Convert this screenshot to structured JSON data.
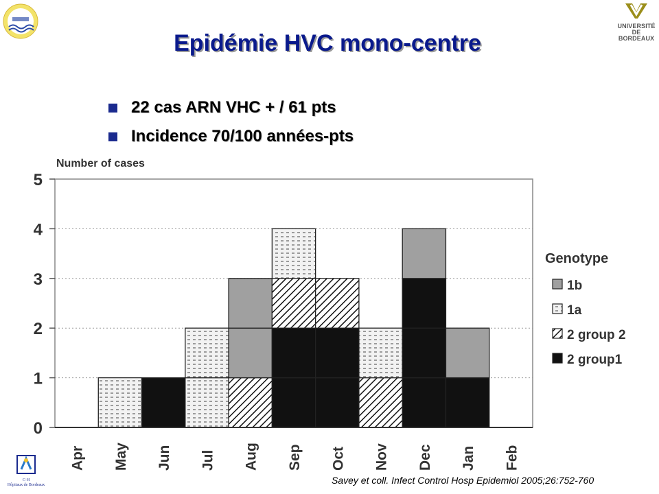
{
  "slide": {
    "title": "Epidémie HVC mono-centre",
    "bullets": [
      "22 cas ARN VHC + / 61 pts",
      "Incidence 70/100 années-pts"
    ],
    "citation": "Savey et coll. Infect Control Hosp Epidemiol 2005;26:752-760",
    "logo_left": "Université Bordeaux 2 logo",
    "logo_right_lines": [
      "UNIVERSITÉ DE",
      "BORDEAUX"
    ],
    "logo_chu_lines": [
      "C·H",
      "Hôpitaux de Bordeaux"
    ]
  },
  "colors": {
    "title": "#0a1a8c",
    "bullet": "#1a2a8e",
    "1b": "#a0a0a0",
    "1a": "#f2f2f2",
    "2 group 2": "#ffffff",
    "2 group1": "#111111"
  },
  "chart_data": {
    "type": "bar",
    "stacked": true,
    "title": "",
    "xlabel": "",
    "ylabel": "Number of cases",
    "ylim": [
      0,
      5
    ],
    "yticks": [
      0,
      1,
      2,
      3,
      4,
      5
    ],
    "grid": "horizontal dotted",
    "legend_title": "Genotype",
    "legend_position": "right",
    "categories": [
      "Apr",
      "May",
      "Jun",
      "Jul",
      "Aug",
      "Sep",
      "Oct",
      "Nov",
      "Dec",
      "Jan",
      "Feb"
    ],
    "series": [
      {
        "name": "2 group1",
        "pattern": "solid-black",
        "values": [
          0,
          0,
          1,
          0,
          0,
          2,
          2,
          0,
          3,
          1,
          0
        ]
      },
      {
        "name": "2 group 2",
        "pattern": "diagonal-hatch",
        "values": [
          0,
          0,
          0,
          0,
          1,
          1,
          1,
          1,
          0,
          0,
          0
        ]
      },
      {
        "name": "1a",
        "pattern": "dashed-dots",
        "values": [
          0,
          1,
          0,
          2,
          0,
          1,
          0,
          1,
          0,
          0,
          0
        ]
      },
      {
        "name": "1b",
        "pattern": "solid-grey",
        "values": [
          0,
          0,
          0,
          0,
          2,
          0,
          0,
          0,
          1,
          1,
          0
        ]
      }
    ],
    "legend_order": [
      "1b",
      "1a",
      "2 group 2",
      "2 group1"
    ]
  }
}
